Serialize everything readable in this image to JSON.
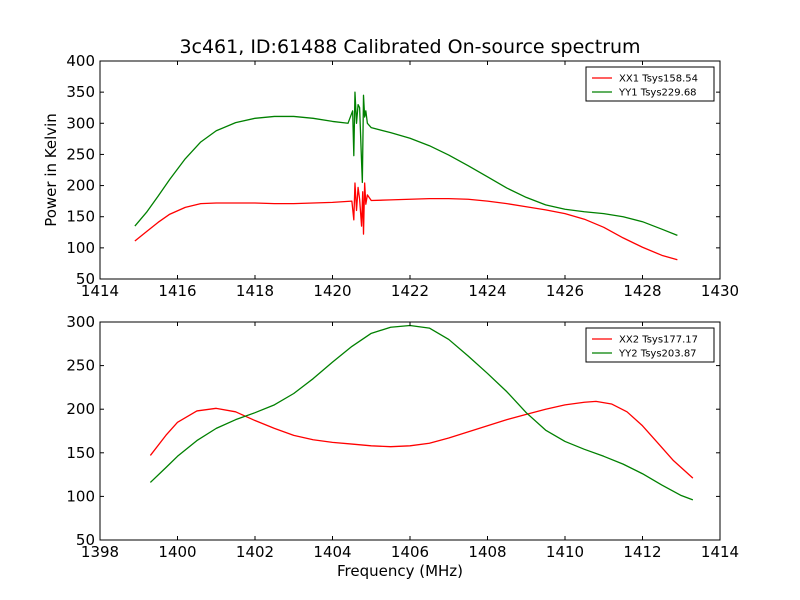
{
  "title": "3c461, ID:61488 Calibrated On-source spectrum",
  "colors": {
    "xx": "#ff0000",
    "yy": "#008000"
  },
  "chart_data": [
    {
      "type": "line",
      "xlabel": "",
      "ylabel": "Power in Kelvin",
      "xlim": [
        1414,
        1430
      ],
      "ylim": [
        50,
        400
      ],
      "xticks": [
        1414,
        1416,
        1418,
        1420,
        1422,
        1424,
        1426,
        1428,
        1430
      ],
      "yticks": [
        50,
        100,
        150,
        200,
        250,
        300,
        350,
        400
      ],
      "grid": false,
      "legend_position": "top-right",
      "series": [
        {
          "name": "XX1 Tsys158.54",
          "color": "#ff0000",
          "x": [
            1414.9,
            1415.2,
            1415.5,
            1415.8,
            1416.2,
            1416.6,
            1417.0,
            1417.5,
            1418.0,
            1418.5,
            1419.0,
            1419.5,
            1420.0,
            1420.5,
            1420.55,
            1420.58,
            1420.62,
            1420.66,
            1420.7,
            1420.75,
            1420.78,
            1420.8,
            1420.83,
            1420.86,
            1420.9,
            1421.0,
            1421.5,
            1422.0,
            1422.5,
            1423.0,
            1423.5,
            1424.0,
            1424.5,
            1425.0,
            1425.5,
            1426.0,
            1426.5,
            1427.0,
            1427.5,
            1428.0,
            1428.5,
            1428.9
          ],
          "y": [
            111,
            126,
            141,
            154,
            165,
            171,
            172,
            172,
            172,
            171,
            171,
            172,
            173,
            175,
            145,
            204,
            160,
            197,
            178,
            135,
            190,
            122,
            204,
            170,
            185,
            176,
            177,
            178,
            179,
            179,
            178,
            175,
            171,
            166,
            161,
            155,
            146,
            133,
            116,
            101,
            88,
            81
          ]
        },
        {
          "name": "YY1 Tsys229.68",
          "color": "#008000",
          "x": [
            1414.9,
            1415.2,
            1415.5,
            1415.8,
            1416.2,
            1416.6,
            1417.0,
            1417.5,
            1418.0,
            1418.5,
            1419.0,
            1419.5,
            1420.0,
            1420.4,
            1420.52,
            1420.55,
            1420.58,
            1420.62,
            1420.66,
            1420.7,
            1420.74,
            1420.77,
            1420.8,
            1420.83,
            1420.86,
            1420.9,
            1421.0,
            1421.5,
            1422.0,
            1422.5,
            1423.0,
            1423.5,
            1424.0,
            1424.5,
            1425.0,
            1425.5,
            1426.0,
            1426.5,
            1427.0,
            1427.5,
            1428.0,
            1428.5,
            1428.9
          ],
          "y": [
            135,
            157,
            183,
            210,
            243,
            270,
            288,
            301,
            308,
            311,
            311,
            308,
            303,
            300,
            320,
            248,
            350,
            300,
            330,
            325,
            255,
            205,
            345,
            310,
            320,
            300,
            293,
            285,
            276,
            264,
            249,
            232,
            214,
            196,
            181,
            169,
            162,
            158,
            155,
            150,
            142,
            130,
            120
          ]
        }
      ]
    },
    {
      "type": "line",
      "xlabel": "Frequency (MHz)",
      "ylabel": "",
      "xlim": [
        1398,
        1414
      ],
      "ylim": [
        50,
        300
      ],
      "xticks": [
        1398,
        1400,
        1402,
        1404,
        1406,
        1408,
        1410,
        1412,
        1414
      ],
      "yticks": [
        50,
        100,
        150,
        200,
        250,
        300
      ],
      "grid": false,
      "legend_position": "top-right",
      "series": [
        {
          "name": "XX2 Tsys177.17",
          "color": "#ff0000",
          "x": [
            1399.3,
            1399.7,
            1400.0,
            1400.5,
            1401.0,
            1401.5,
            1402.0,
            1402.5,
            1403.0,
            1403.5,
            1404.0,
            1404.5,
            1405.0,
            1405.5,
            1406.0,
            1406.5,
            1407.0,
            1407.5,
            1408.0,
            1408.5,
            1409.0,
            1409.5,
            1410.0,
            1410.5,
            1410.8,
            1411.2,
            1411.6,
            1412.0,
            1412.4,
            1412.8,
            1413.3
          ],
          "y": [
            147,
            170,
            185,
            198,
            201,
            197,
            187,
            178,
            170,
            165,
            162,
            160,
            158,
            157,
            158,
            161,
            167,
            174,
            181,
            188,
            194,
            200,
            205,
            208,
            209,
            206,
            197,
            181,
            161,
            141,
            121
          ]
        },
        {
          "name": "YY2 Tsys203.87",
          "color": "#008000",
          "x": [
            1399.3,
            1399.7,
            1400.0,
            1400.5,
            1401.0,
            1401.5,
            1402.0,
            1402.5,
            1403.0,
            1403.5,
            1404.0,
            1404.5,
            1405.0,
            1405.5,
            1406.0,
            1406.5,
            1407.0,
            1407.5,
            1408.0,
            1408.5,
            1409.0,
            1409.5,
            1410.0,
            1410.5,
            1411.0,
            1411.5,
            1412.0,
            1412.5,
            1413.0,
            1413.3
          ],
          "y": [
            116,
            133,
            146,
            164,
            178,
            188,
            196,
            205,
            218,
            235,
            254,
            272,
            287,
            294,
            296,
            293,
            280,
            261,
            241,
            220,
            196,
            176,
            163,
            154,
            146,
            137,
            126,
            113,
            101,
            96
          ]
        }
      ]
    }
  ]
}
